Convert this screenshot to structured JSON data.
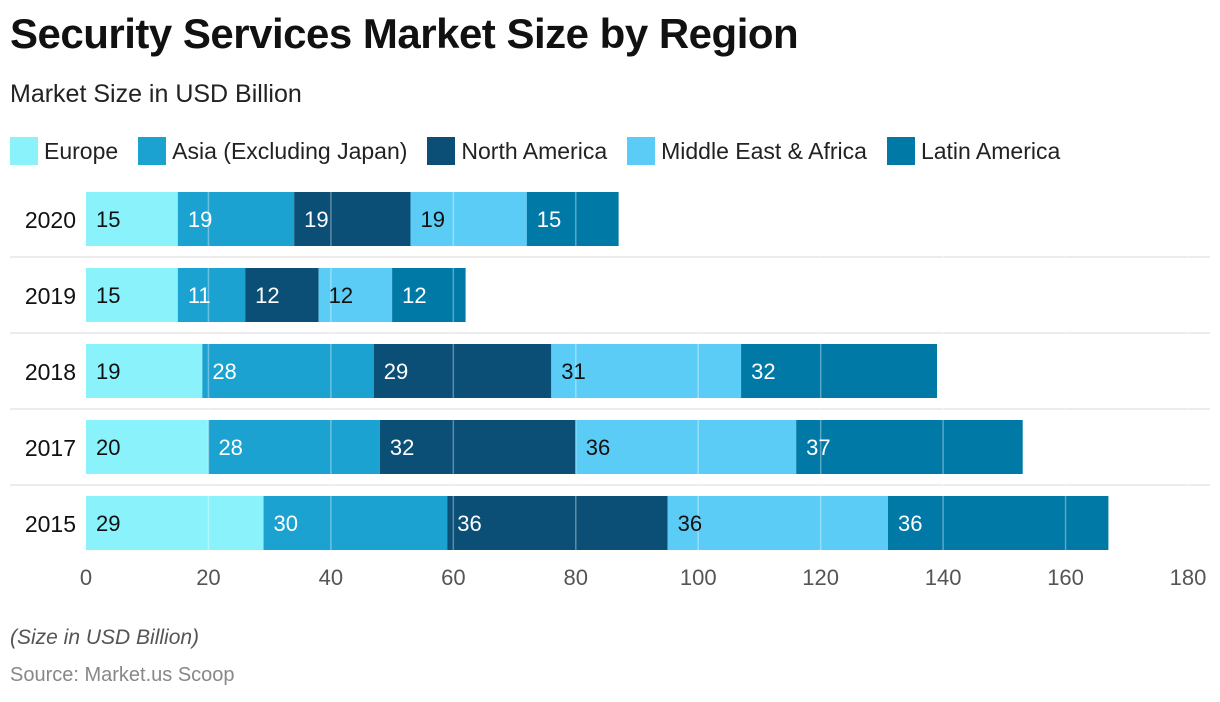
{
  "chart_data": {
    "type": "bar",
    "orientation": "horizontal",
    "stacked": true,
    "title": "Security Services Market Size by Region",
    "subtitle": "Market Size in USD Billion",
    "categories": [
      "2020",
      "2019",
      "2018",
      "2017",
      "2015"
    ],
    "series": [
      {
        "name": "Europe",
        "color": "#8AF2FB",
        "label_color": "#111111",
        "values": [
          15,
          15,
          19,
          20,
          29
        ]
      },
      {
        "name": "Asia (Excluding Japan)",
        "color": "#1BA2D0",
        "label_color": "#ffffff",
        "values": [
          19,
          11,
          28,
          28,
          30
        ]
      },
      {
        "name": "North America",
        "color": "#0B4E76",
        "label_color": "#ffffff",
        "values": [
          19,
          12,
          29,
          32,
          36
        ]
      },
      {
        "name": "Middle East & Africa",
        "color": "#5BCCF6",
        "label_color": "#111111",
        "values": [
          19,
          12,
          31,
          36,
          36
        ]
      },
      {
        "name": "Latin America",
        "color": "#0079A6",
        "label_color": "#ffffff",
        "values": [
          15,
          12,
          32,
          37,
          36
        ]
      }
    ],
    "xlim": [
      0,
      180
    ],
    "xticks": [
      0,
      20,
      40,
      60,
      80,
      100,
      120,
      140,
      160,
      180
    ],
    "xlabel": "",
    "ylabel": "",
    "grid": true,
    "legend_position": "top-left"
  },
  "footnote": "(Size in USD Billion)",
  "source": "Source: Market.us Scoop"
}
